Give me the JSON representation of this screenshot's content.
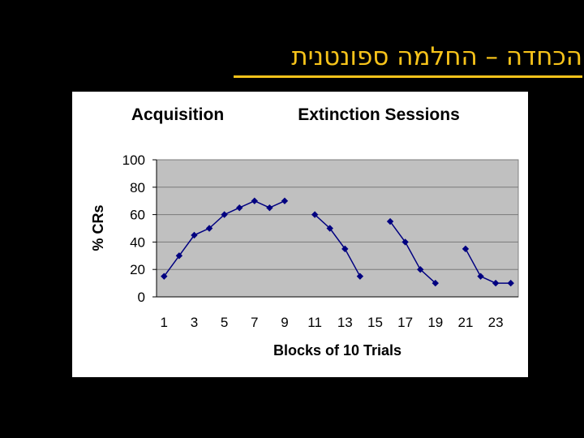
{
  "slide": {
    "title": "הכחדה – החלמה ספונטנית",
    "accent_color": "#F7C31A",
    "background": "#000000"
  },
  "chart_data": {
    "type": "line",
    "annotations": [
      "Acquisition",
      "Extinction Sessions"
    ],
    "xlabel": "Blocks of 10 Trials",
    "ylabel": "% CRs",
    "xlim": [
      0.5,
      24.5
    ],
    "ylim": [
      0,
      100
    ],
    "x_ticks": [
      1,
      3,
      5,
      7,
      9,
      11,
      13,
      15,
      17,
      19,
      21,
      23
    ],
    "y_ticks": [
      0,
      20,
      40,
      60,
      80,
      100
    ],
    "grid": true,
    "plot_background": "#C0C0C0",
    "line_color": "#000080",
    "series": [
      {
        "x": [
          1,
          2,
          3,
          4,
          5,
          6,
          7,
          8,
          9
        ],
        "values": [
          15,
          30,
          45,
          50,
          60,
          65,
          70,
          65,
          70
        ]
      },
      {
        "x": [
          11,
          12,
          13,
          14
        ],
        "values": [
          60,
          50,
          35,
          15
        ]
      },
      {
        "x": [
          16,
          17,
          18,
          19
        ],
        "values": [
          55,
          40,
          20,
          10
        ]
      },
      {
        "x": [
          21,
          22,
          23,
          24
        ],
        "values": [
          35,
          15,
          10,
          10
        ]
      }
    ]
  }
}
